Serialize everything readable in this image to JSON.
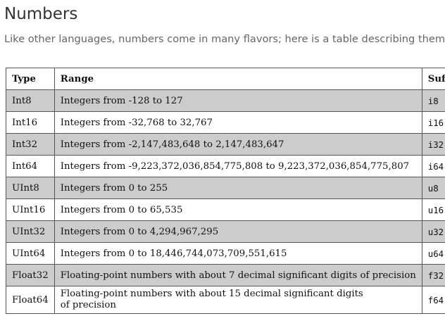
{
  "heading": "Numbers",
  "intro": "Like other languages, numbers come in many flavors; here is a table describing them:",
  "table": {
    "headers": {
      "type": "Type",
      "range": "Range",
      "suffix": "Suffix"
    },
    "rows": [
      {
        "type": "Int8",
        "range": "Integers from -128 to 127",
        "suffix": "i8",
        "shaded": true
      },
      {
        "type": "Int16",
        "range": "Integers from -32,768 to 32,767",
        "suffix": "i16",
        "shaded": false
      },
      {
        "type": "Int32",
        "range": "Integers from -2,147,483,648 to 2,147,483,647",
        "suffix": "i32",
        "shaded": true
      },
      {
        "type": "Int64",
        "range": "Integers from -9,223,372,036,854,775,808 to 9,223,372,036,854,775,807",
        "suffix": "i64",
        "shaded": false
      },
      {
        "type": "UInt8",
        "range": "Integers from 0 to 255",
        "suffix": "u8",
        "shaded": true
      },
      {
        "type": "UInt16",
        "range": "Integers from 0 to 65,535",
        "suffix": "u16",
        "shaded": false
      },
      {
        "type": "UInt32",
        "range": "Integers from 0 to 4,294,967,295",
        "suffix": "u32",
        "shaded": true
      },
      {
        "type": "UInt64",
        "range": "Integers from 0 to 18,446,744,073,709,551,615",
        "suffix": "u64",
        "shaded": false
      },
      {
        "type": "Float32",
        "range": "Floating-point numbers with about 7 decimal significant digits of precision",
        "suffix": "f32",
        "shaded": true
      },
      {
        "type": "Float64",
        "range": "Floating-point numbers with about 15 decimal significant digits",
        "range_line2": "of precision",
        "suffix": "f64",
        "shaded": false
      }
    ]
  },
  "colors": {
    "heading": "#333333",
    "intro": "#666666",
    "shaded_row": "#cccccc",
    "border": "#555555"
  }
}
